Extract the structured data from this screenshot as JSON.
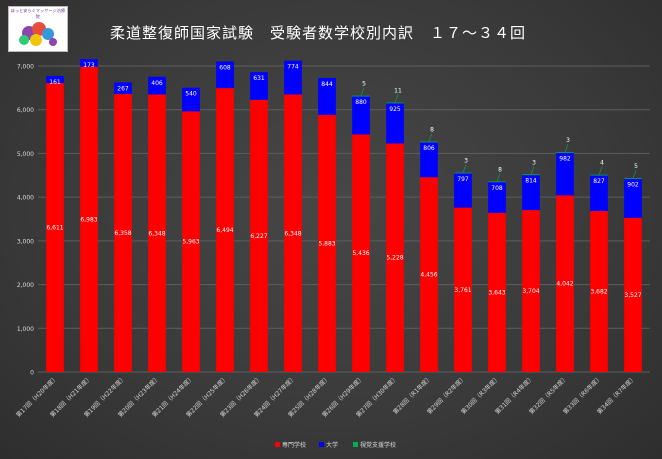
{
  "logo": {
    "caption": "ほっと安らぐマッサージ治療院",
    "colors": [
      "#8e44ad",
      "#e74c3c",
      "#3498db",
      "#f1c40f",
      "#2ecc71"
    ]
  },
  "chart_data": {
    "type": "bar",
    "stacked": true,
    "title": "柔道整復師国家試験　受験者数学校別内訳　１７～３４回",
    "xlabel": "",
    "ylabel": "",
    "ylim": [
      0,
      7000
    ],
    "yticks": [
      "0",
      "1,000",
      "2,000",
      "3,000",
      "4,000",
      "5,000",
      "6,000",
      "7,000"
    ],
    "grid": true,
    "legend_position": "bottom",
    "categories": [
      "第17回（H20年度）",
      "第18回（H21年度）",
      "第19回（H22年度）",
      "第20回（H23年度）",
      "第21回（H24年度）",
      "第22回（H25年度）",
      "第23回（H26年度）",
      "第24回（H27年度）",
      "第25回（H28年度）",
      "第26回（H29年度）",
      "第27回（H30年度）",
      "第28回（R1年度）",
      "第29回（R2年度）",
      "第30回（R3年度）",
      "第31回（R4年度）",
      "第32回（R5年度）",
      "第33回（R6年度）",
      "第34回（R7年度）"
    ],
    "series": [
      {
        "name": "専門学校",
        "color": "#ff0000",
        "values": [
          6611,
          6983,
          6358,
          6348,
          5963,
          6494,
          6227,
          6348,
          5883,
          5436,
          5228,
          4456,
          3761,
          3643,
          3704,
          4042,
          3682,
          3527
        ],
        "labels": [
          "6,611",
          "6,983",
          "6,358",
          "6,348",
          "5,963",
          "6,494",
          "6,227",
          "6,348",
          "5,883",
          "5,436",
          "5,228",
          "4,456",
          "3,761",
          "3,643",
          "3,704",
          "4,042",
          "3,682",
          "3,527"
        ]
      },
      {
        "name": "大学",
        "color": "#0000ff",
        "values": [
          161,
          173,
          267,
          406,
          540,
          608,
          631,
          774,
          844,
          880,
          925,
          806,
          797,
          708,
          814,
          982,
          827,
          902
        ],
        "labels": [
          "161",
          "173",
          "267",
          "406",
          "540",
          "608",
          "631",
          "774",
          "844",
          "880",
          "925",
          "806",
          "797",
          "708",
          "814",
          "982",
          "827",
          "902"
        ]
      },
      {
        "name": "視覚支援学校",
        "color": "#00b050",
        "values": [
          0,
          0,
          0,
          0,
          0,
          0,
          0,
          0,
          0,
          5,
          11,
          8,
          3,
          8,
          3,
          3,
          4,
          5
        ],
        "labels": [
          "",
          "",
          "",
          "",
          "",
          "",
          "",
          "",
          "",
          "5",
          "11",
          "8",
          "3",
          "8",
          "3",
          "3",
          "4",
          "5"
        ]
      }
    ]
  }
}
